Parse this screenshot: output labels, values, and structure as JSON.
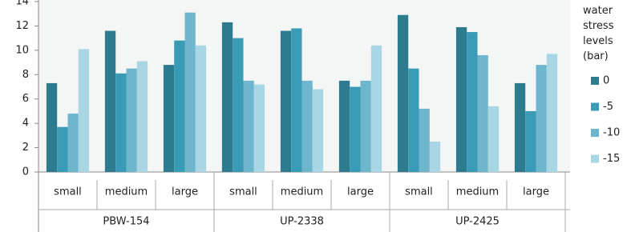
{
  "chart_data": {
    "type": "bar",
    "categories": [
      "small",
      "medium",
      "large",
      "small",
      "medium",
      "large",
      "small",
      "medium",
      "large"
    ],
    "groups": [
      "PBW-154",
      "UP-2338",
      "UP-2425"
    ],
    "legend_title": "water stress levels (bar)",
    "series": [
      {
        "name": "0",
        "color": "#2d7b8e",
        "values": [
          7.3,
          11.6,
          8.8,
          12.3,
          11.6,
          7.5,
          12.9,
          11.9,
          7.3
        ]
      },
      {
        "name": "-5",
        "color": "#3a9bb7",
        "values": [
          3.7,
          8.1,
          10.8,
          11.0,
          11.8,
          7.0,
          8.5,
          11.5,
          5.0
        ]
      },
      {
        "name": "-10",
        "color": "#6db6cd",
        "values": [
          4.8,
          8.5,
          13.1,
          7.5,
          7.5,
          7.5,
          5.2,
          9.6,
          8.8
        ]
      },
      {
        "name": "-15",
        "color": "#a9d6e4",
        "values": [
          10.1,
          9.1,
          10.4,
          7.2,
          6.8,
          10.4,
          2.5,
          5.4,
          9.7
        ]
      }
    ],
    "ylim": [
      0,
      14
    ],
    "yticks": [
      0,
      2,
      4,
      6,
      8,
      10,
      12,
      14
    ]
  }
}
